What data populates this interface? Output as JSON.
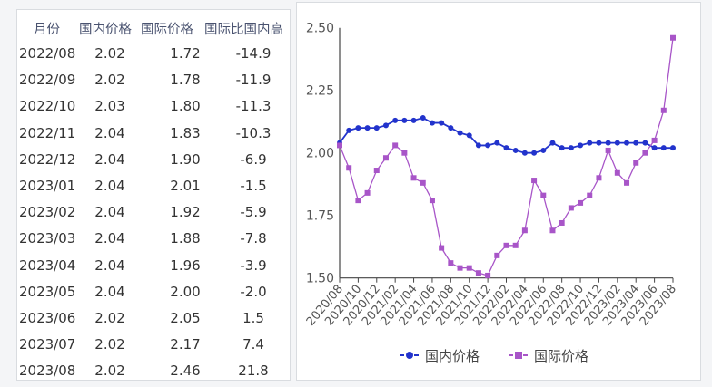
{
  "table": {
    "headers": [
      "月份",
      "国内价格",
      "国际价格",
      "国际比国内高"
    ],
    "rows": [
      [
        "2022/08",
        "2.02",
        "1.72",
        "-14.9"
      ],
      [
        "2022/09",
        "2.02",
        "1.78",
        "-11.9"
      ],
      [
        "2022/10",
        "2.03",
        "1.80",
        "-11.3"
      ],
      [
        "2022/11",
        "2.04",
        "1.83",
        "-10.3"
      ],
      [
        "2022/12",
        "2.04",
        "1.90",
        "-6.9"
      ],
      [
        "2023/01",
        "2.04",
        "2.01",
        "-1.5"
      ],
      [
        "2023/02",
        "2.04",
        "1.92",
        "-5.9"
      ],
      [
        "2023/03",
        "2.04",
        "1.88",
        "-7.8"
      ],
      [
        "2023/04",
        "2.04",
        "1.96",
        "-3.9"
      ],
      [
        "2023/05",
        "2.04",
        "2.00",
        "-2.0"
      ],
      [
        "2023/06",
        "2.02",
        "2.05",
        "1.5"
      ],
      [
        "2023/07",
        "2.02",
        "2.17",
        "7.4"
      ],
      [
        "2023/08",
        "2.02",
        "2.46",
        "21.8"
      ]
    ]
  },
  "chart_data": {
    "type": "line",
    "x": [
      "2020/08",
      "2020/09",
      "2020/10",
      "2020/11",
      "2020/12",
      "2021/01",
      "2021/02",
      "2021/03",
      "2021/04",
      "2021/05",
      "2021/06",
      "2021/07",
      "2021/08",
      "2021/09",
      "2021/10",
      "2021/11",
      "2021/12",
      "2022/01",
      "2022/02",
      "2022/03",
      "2022/04",
      "2022/05",
      "2022/06",
      "2022/07",
      "2022/08",
      "2022/09",
      "2022/10",
      "2022/11",
      "2022/12",
      "2023/01",
      "2023/02",
      "2023/03",
      "2023/04",
      "2023/05",
      "2023/06",
      "2023/07",
      "2023/08"
    ],
    "x_tick_labels": [
      "2020/08",
      "2020/10",
      "2020/12",
      "2021/02",
      "2021/04",
      "2021/06",
      "2021/08",
      "2021/10",
      "2021/12",
      "2022/02",
      "2022/04",
      "2022/06",
      "2022/08",
      "2022/10",
      "2022/12",
      "2023/02",
      "2023/04",
      "2023/06",
      "2023/08"
    ],
    "y_ticks": [
      "1.50",
      "1.75",
      "2.00",
      "2.25",
      "2.50"
    ],
    "ylim": [
      1.5,
      2.5
    ],
    "grid": false,
    "legend_position": "bottom",
    "series": [
      {
        "name": "国内价格",
        "color": "#2233cc",
        "marker": "circle",
        "values": [
          2.04,
          2.09,
          2.1,
          2.1,
          2.1,
          2.11,
          2.13,
          2.13,
          2.13,
          2.14,
          2.12,
          2.12,
          2.1,
          2.08,
          2.07,
          2.03,
          2.03,
          2.04,
          2.02,
          2.01,
          2.0,
          2.0,
          2.01,
          2.04,
          2.02,
          2.02,
          2.03,
          2.04,
          2.04,
          2.04,
          2.04,
          2.04,
          2.04,
          2.04,
          2.02,
          2.02,
          2.02
        ]
      },
      {
        "name": "国际价格",
        "color": "#a855c8",
        "marker": "square",
        "values": [
          2.03,
          1.94,
          1.81,
          1.84,
          1.93,
          1.98,
          2.03,
          2.0,
          1.9,
          1.88,
          1.81,
          1.62,
          1.56,
          1.54,
          1.54,
          1.52,
          1.51,
          1.59,
          1.63,
          1.63,
          1.69,
          1.89,
          1.83,
          1.69,
          1.72,
          1.78,
          1.8,
          1.83,
          1.9,
          2.01,
          1.92,
          1.88,
          1.96,
          2.0,
          2.05,
          2.17,
          2.46
        ]
      }
    ]
  }
}
